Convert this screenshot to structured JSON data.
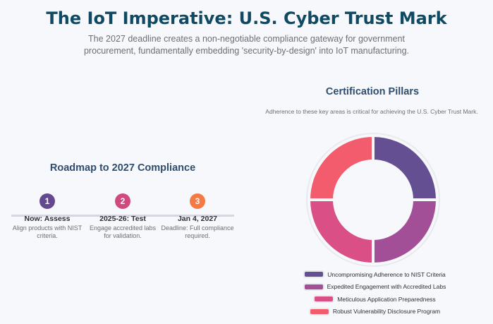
{
  "header": {
    "title": "The IoT Imperative: U.S. Cyber Trust Mark",
    "subtitle": "The 2027 deadline creates a non-negotiable compliance gateway for government procurement, fundamentally embedding 'security-by-design' into IoT manufacturing."
  },
  "roadmap": {
    "title": "Roadmap to 2027 Compliance",
    "steps": [
      {
        "number": "1",
        "title": "Now: Assess",
        "desc": "Align products with NIST criteria.",
        "color": "#65498f"
      },
      {
        "number": "2",
        "title": "2025-26: Test",
        "desc": "Engage accredited labs for validation.",
        "color": "#d04a80"
      },
      {
        "number": "3",
        "title": "Jan 4, 2027",
        "desc": "Deadline: Full compliance required.",
        "color": "#f47a45"
      }
    ]
  },
  "pillars": {
    "title": "Certification Pillars",
    "description": "Adherence to these key areas is critical for achieving the U.S. Cyber Trust Mark."
  },
  "chart_data": {
    "type": "pie",
    "donut": true,
    "title": "",
    "categories": [
      "Uncompromising Adherence to NIST Criteria",
      "Expedited Engagement with Accredited Labs",
      "Meticulous Application Preparedness",
      "Robust Vulnerability Disclosure Program"
    ],
    "values": [
      25,
      25,
      25,
      25
    ],
    "colors": [
      "#644f93",
      "#a24f98",
      "#d94f86",
      "#f25c6d"
    ],
    "legend_position": "bottom"
  }
}
